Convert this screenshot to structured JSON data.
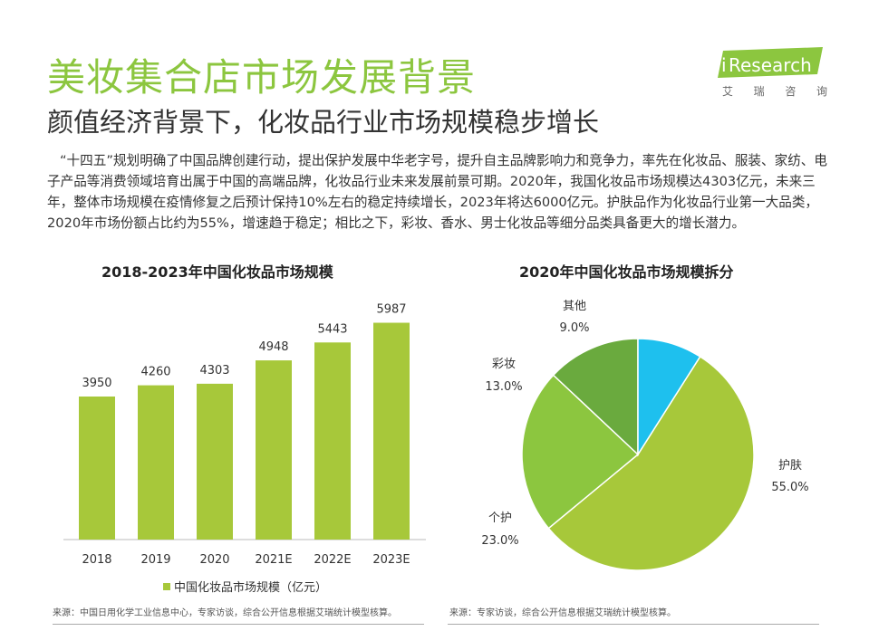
{
  "header": {
    "title": "美妆集合店市场发展背景",
    "subtitle": "颜值经济背景下，化妆品行业市场规模稳步增长",
    "logo_text": "Research",
    "logo_i": "i",
    "logo_cn": [
      "艾",
      "瑞",
      "咨",
      "询"
    ]
  },
  "paragraph": "“十四五”规划明确了中国品牌创建行动，提出保护发展中华老字号，提升自主品牌影响力和竞争力，率先在化妆品、服装、家纺、电子产品等消费领域培育出属于中国的高端品牌，化妆品行业未来发展前景可期。2020年，我国化妆品市场规模达4303亿元，未来三年，整体市场规模在疫情修复之后预计保持10%左右的稳定持续增长，2023年将达6000亿元。护肤品作为化妆品行业第一大品类，2020年市场份额占比约为55%，增速趋于稳定；相比之下，彩妆、香水、男士化妆品等细分品类具备更大的增长潜力。",
  "colors": {
    "accent": "#8cc63f",
    "bar": "#a7c83a",
    "pie_skincare": "#a7c83a",
    "pie_personal_care": "#8cc63f",
    "pie_makeup": "#6aaa3e",
    "pie_other": "#1ec0ee"
  },
  "chart_data": [
    {
      "type": "bar",
      "title": "2018-2023年中国化妆品市场规模",
      "categories": [
        "2018",
        "2019",
        "2020",
        "2021E",
        "2022E",
        "2023E"
      ],
      "values": [
        3950,
        4260,
        4303,
        4948,
        5443,
        5987
      ],
      "value_labels": [
        "3950",
        "4260",
        "4303",
        "4948",
        "5443",
        "5987"
      ],
      "series": [
        {
          "name": "中国化妆品市场规模（亿元）",
          "values": [
            3950,
            4260,
            4303,
            4948,
            5443,
            5987
          ]
        }
      ],
      "ylim": [
        0,
        6000
      ],
      "grid": false,
      "legend": "bottom",
      "legend_label": "中国化妆品市场规模（亿元）",
      "source": "来源：中国日用化学工业信息中心，专家访谈，综合公开信息根据艾瑞统计模型核算。"
    },
    {
      "type": "pie",
      "title": "2020年中国化妆品市场规模拆分",
      "slices": [
        {
          "label": "护肤",
          "value": 55.0,
          "value_label": "55.0%"
        },
        {
          "label": "个护",
          "value": 23.0,
          "value_label": "23.0%"
        },
        {
          "label": "彩妆",
          "value": 13.0,
          "value_label": "13.0%"
        },
        {
          "label": "其他",
          "value": 9.0,
          "value_label": "9.0%"
        }
      ],
      "source": "来源：专家访谈，综合公开信息根据艾瑞统计模型核算。"
    }
  ]
}
